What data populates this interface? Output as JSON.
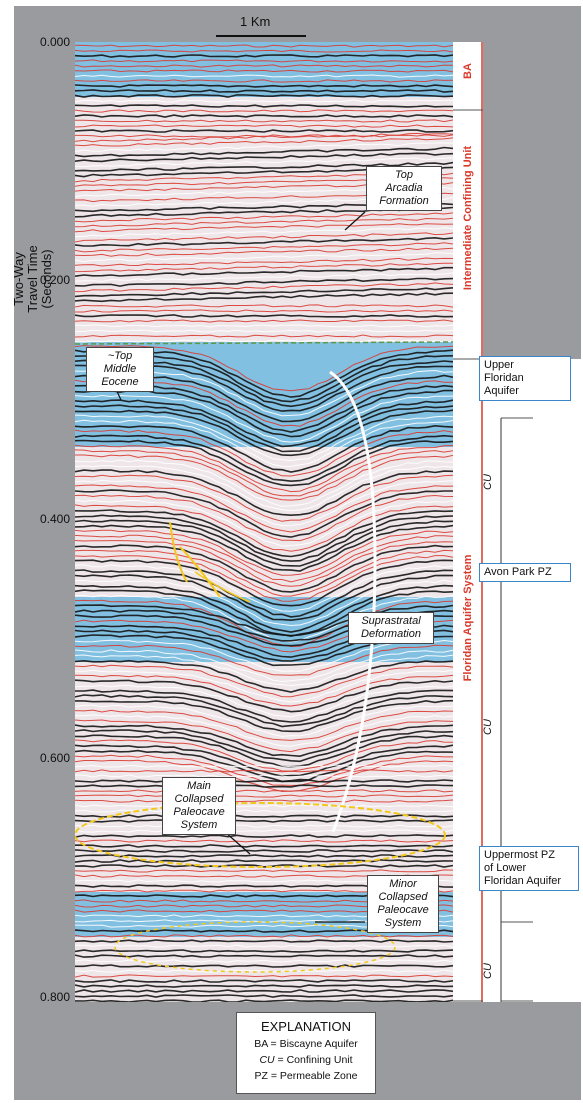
{
  "scale_bar": {
    "label": "1 Km"
  },
  "y_axis": {
    "title_line1": "Two-Way",
    "title_line2": "Travel Time",
    "title_line3": "(Seconds)",
    "ticks": [
      "0.000",
      "0.200",
      "0.400",
      "0.600",
      "0.800"
    ]
  },
  "annotations": {
    "top_arcadia_1": "Top",
    "top_arcadia_2": "Arcadia",
    "top_arcadia_3": "Formation",
    "top_eocene_1": "~Top",
    "top_eocene_2": "Middle",
    "top_eocene_3": "Eocene",
    "suprastratal_1": "Suprastratal",
    "suprastratal_2": "Deformation",
    "main_cave_1": "Main",
    "main_cave_2": "Collapsed",
    "main_cave_3": "Paleocave",
    "main_cave_4": "System",
    "minor_cave_1": "Minor",
    "minor_cave_2": "Collapsed",
    "minor_cave_3": "Paleocave",
    "minor_cave_4": "System"
  },
  "units": {
    "ba": "BA",
    "icu": "Intermediate Confining Unit",
    "fas": "Floridan Aquifer System"
  },
  "zones": {
    "ufa_1": "Upper",
    "ufa_2": "Floridan",
    "ufa_3": "Aquifer",
    "avon": "Avon Park PZ",
    "upz_1": "Uppermost PZ",
    "upz_2": "of Lower",
    "upz_3": "Floridan Aquifer",
    "cu": "CU"
  },
  "legend": {
    "title": "EXPLANATION",
    "item1_abbr": "BA",
    "item1_text": " = Biscayne Aquifer",
    "item2_abbr": "CU",
    "item2_text": " = Confining Unit",
    "item3_abbr": "PZ",
    "item3_text": " = Permeable Zone"
  },
  "colors": {
    "frame": "#9a9b9e",
    "aquifer_blue": "#6fb8e0",
    "red_reflector": "#d83a30",
    "annotation_yellow": "#f2c81e",
    "unit_red": "#d93a2a",
    "zone_blue": "#3a86c8"
  }
}
